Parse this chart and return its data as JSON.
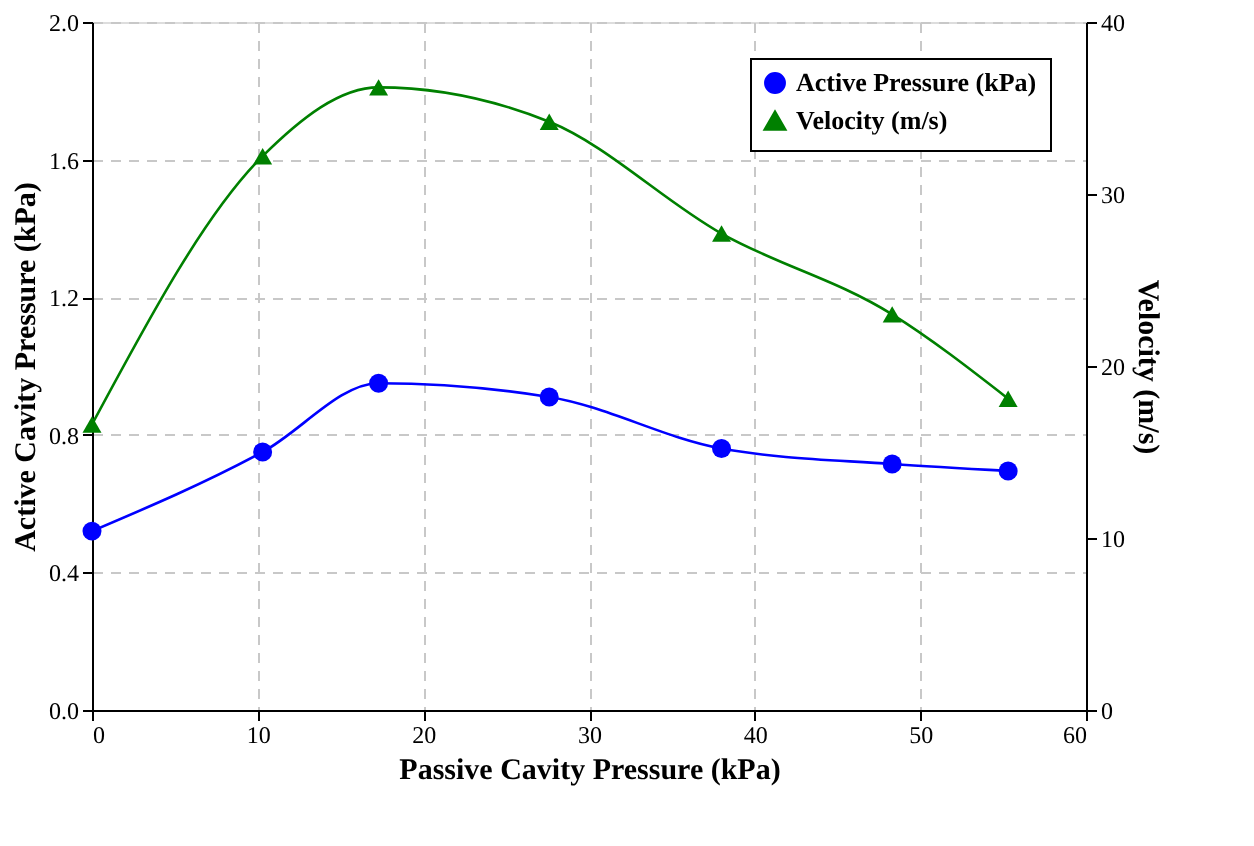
{
  "chart_data": {
    "type": "line",
    "xlabel": "Passive Cavity Pressure (kPa)",
    "ylabel": "Active Cavity Pressure (kPa)",
    "y2label": "Velocity (m/s)",
    "x": [
      0,
      10.3,
      17.3,
      27.6,
      38.0,
      48.3,
      55.3
    ],
    "series": [
      {
        "name": "Active Pressure (kPa)",
        "color": "#0000ff",
        "marker": "circle",
        "values": [
          0.52,
          0.75,
          0.95,
          0.91,
          0.76,
          0.715,
          0.695
        ]
      },
      {
        "name": "Velocity (m/s)",
        "color": "#008000",
        "marker": "triangle",
        "axis": "y2",
        "values": [
          16.6,
          32.2,
          36.2,
          34.2,
          27.7,
          23.0,
          18.1
        ]
      }
    ],
    "xlim": [
      0,
      60
    ],
    "xticks": [
      0,
      10,
      20,
      30,
      40,
      50,
      60
    ],
    "ylim": [
      0,
      2.0
    ],
    "yticks": [
      {
        "value": 0,
        "label": "0.0"
      },
      {
        "value": 0.4,
        "label": "0.4"
      },
      {
        "value": 0.8,
        "label": "0.8"
      },
      {
        "value": 1.2,
        "label": "1.2"
      },
      {
        "value": 1.6,
        "label": "1.6"
      },
      {
        "value": 2.0,
        "label": "2.0"
      }
    ],
    "y2lim": [
      0,
      40
    ],
    "y2ticks": [
      0,
      10,
      20,
      30,
      40
    ],
    "grid": true,
    "legend": "top right",
    "line_style": "solid"
  }
}
